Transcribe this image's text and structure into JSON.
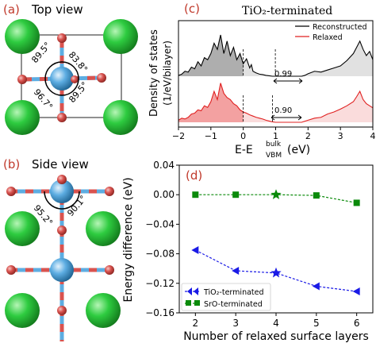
{
  "panels": {
    "a": {
      "label": "(a)",
      "title": "Top view",
      "angles": [
        "89.5°",
        "83.8°",
        "96.7°",
        "89.5°"
      ]
    },
    "b": {
      "label": "(b)",
      "title": "Side view",
      "angles": [
        "95.2°",
        "90.1°"
      ]
    },
    "c": {
      "label": "(c)"
    },
    "d": {
      "label": "(d)"
    }
  },
  "colors": {
    "label_red": "#c0392b",
    "atom_green": "#2ecc40",
    "atom_blue": "#5dade2",
    "atom_red": "#d9534f",
    "reconstructed": "#000000",
    "relaxed": "#e02020",
    "tio2_series": "#1a1ae6",
    "sro_series": "#0a8a0a"
  },
  "chart_data": [
    {
      "type": "area",
      "title": "TiO₂-terminated",
      "xlabel": "E-E",
      "xlabel_sup": "bulk",
      "xlabel_sub": "VBM",
      "xlabel_unit": "(eV)",
      "ylabel": "Density of states",
      "ylabel2": "(1/eV/bilayer)",
      "xlim": [
        -2,
        4
      ],
      "xticks": [
        "−2",
        "−1",
        "0",
        "1",
        "2",
        "3",
        "4"
      ],
      "legend_position": "top-right",
      "annotations": [
        "0.99",
        "0.90"
      ],
      "series": [
        {
          "name": "Reconstructed",
          "offset": 1.0,
          "x": [
            -2.0,
            -1.9,
            -1.8,
            -1.7,
            -1.6,
            -1.5,
            -1.4,
            -1.3,
            -1.2,
            -1.1,
            -1.0,
            -0.9,
            -0.8,
            -0.7,
            -0.6,
            -0.5,
            -0.4,
            -0.3,
            -0.2,
            -0.1,
            0.0,
            0.1,
            0.2,
            0.25,
            0.3,
            0.4,
            0.5,
            0.6,
            0.7,
            0.8,
            0.9,
            1.0,
            1.2,
            1.4,
            1.6,
            1.8,
            1.9,
            2.0,
            2.2,
            2.4,
            2.6,
            2.8,
            3.0,
            3.2,
            3.4,
            3.5,
            3.6,
            3.7,
            3.8,
            3.9,
            4.0
          ],
          "y": [
            0.02,
            0.05,
            0.12,
            0.1,
            0.22,
            0.18,
            0.35,
            0.25,
            0.45,
            0.4,
            0.55,
            0.8,
            0.65,
            1.0,
            0.55,
            0.85,
            0.5,
            0.7,
            0.4,
            0.55,
            0.3,
            0.42,
            0.2,
            0.28,
            0.12,
            0.08,
            0.05,
            0.04,
            0.02,
            0.01,
            0.0,
            0.0,
            0.0,
            0.0,
            0.0,
            0.0,
            0.02,
            0.06,
            0.12,
            0.1,
            0.15,
            0.2,
            0.25,
            0.38,
            0.55,
            0.7,
            0.85,
            0.65,
            0.5,
            0.6,
            0.4
          ]
        },
        {
          "name": "Relaxed",
          "offset": 0.0,
          "x": [
            -2.0,
            -1.9,
            -1.8,
            -1.7,
            -1.6,
            -1.5,
            -1.4,
            -1.3,
            -1.2,
            -1.1,
            -1.0,
            -0.9,
            -0.8,
            -0.7,
            -0.6,
            -0.5,
            -0.4,
            -0.3,
            -0.2,
            -0.1,
            0.0,
            0.1,
            0.2,
            0.3,
            0.4,
            0.5,
            0.6,
            0.7,
            0.8,
            0.9,
            1.0,
            1.2,
            1.4,
            1.6,
            1.8,
            2.0,
            2.2,
            2.4,
            2.6,
            2.8,
            3.0,
            3.2,
            3.4,
            3.5,
            3.6,
            3.7,
            3.8,
            3.9,
            4.0
          ],
          "y": [
            0.05,
            0.1,
            0.08,
            0.12,
            0.2,
            0.22,
            0.3,
            0.28,
            0.4,
            0.36,
            0.5,
            0.75,
            0.55,
            0.95,
            0.7,
            0.6,
            0.55,
            0.45,
            0.4,
            0.3,
            0.25,
            0.22,
            0.18,
            0.15,
            0.12,
            0.1,
            0.08,
            0.05,
            0.03,
            0.01,
            0.0,
            0.0,
            0.0,
            0.0,
            0.0,
            0.05,
            0.1,
            0.12,
            0.2,
            0.25,
            0.32,
            0.4,
            0.5,
            0.62,
            0.75,
            0.55,
            0.45,
            0.4,
            0.35
          ]
        }
      ]
    },
    {
      "type": "line",
      "xlabel": "Number of relaxed surface layers",
      "ylabel": "Energy difference (eV)",
      "xlim": [
        1.6,
        6.4
      ],
      "ylim": [
        -0.16,
        0.04
      ],
      "xticks": [
        "2",
        "3",
        "4",
        "5",
        "6"
      ],
      "yticks": [
        "0.04",
        "0.00",
        "−0.04",
        "−0.08",
        "−0.12",
        "−0.16"
      ],
      "legend_position": "bottom-left",
      "series": [
        {
          "name": "TiO₂-terminated",
          "x": [
            2,
            3,
            4,
            5,
            6
          ],
          "y": [
            -0.075,
            -0.103,
            -0.106,
            -0.124,
            -0.131
          ],
          "star_index": 2
        },
        {
          "name": "SrO-terminated",
          "x": [
            2,
            3,
            4,
            5,
            6
          ],
          "y": [
            0.0,
            0.0,
            0.0,
            -0.001,
            -0.011
          ],
          "star_index": 2
        }
      ]
    }
  ]
}
